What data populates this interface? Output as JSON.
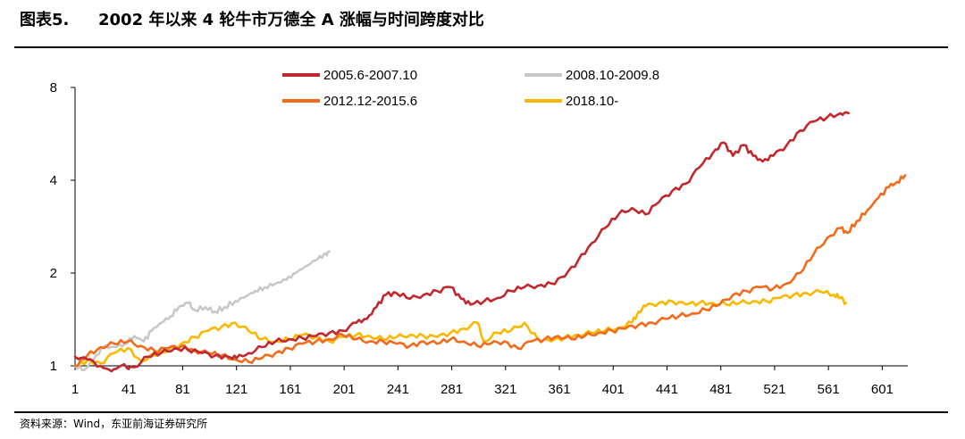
{
  "header": {
    "figure_label": "图表5.",
    "title": "2002 年以来 4 轮牛市万德全 A 涨幅与时间跨度对比"
  },
  "source": "资料来源：Wind，东亚前海证券研究所",
  "chart_data": {
    "type": "line",
    "title": "2002 年以来 4 轮牛市万德全 A 涨幅与时间跨度对比",
    "xlabel": "",
    "ylabel": "",
    "y_scale": "log",
    "ylim": [
      1,
      8
    ],
    "y_ticks": [
      1,
      2,
      4,
      8
    ],
    "xlim": [
      1,
      620
    ],
    "x_ticks": [
      1,
      41,
      81,
      121,
      161,
      201,
      241,
      281,
      321,
      361,
      401,
      441,
      481,
      521,
      561,
      601
    ],
    "grid": false,
    "legend_position": "top",
    "series": [
      {
        "name": "2005.6-2007.10",
        "color": "#c0282d",
        "points": [
          [
            1,
            1.07
          ],
          [
            10,
            1.05
          ],
          [
            20,
            1.0
          ],
          [
            28,
            0.96
          ],
          [
            35,
            1.0
          ],
          [
            45,
            0.99
          ],
          [
            55,
            1.07
          ],
          [
            65,
            1.1
          ],
          [
            75,
            1.14
          ],
          [
            85,
            1.13
          ],
          [
            95,
            1.1
          ],
          [
            105,
            1.08
          ],
          [
            115,
            1.07
          ],
          [
            121,
            1.06
          ],
          [
            130,
            1.1
          ],
          [
            140,
            1.15
          ],
          [
            150,
            1.2
          ],
          [
            160,
            1.22
          ],
          [
            170,
            1.23
          ],
          [
            180,
            1.25
          ],
          [
            190,
            1.28
          ],
          [
            200,
            1.3
          ],
          [
            210,
            1.38
          ],
          [
            218,
            1.42
          ],
          [
            225,
            1.55
          ],
          [
            232,
            1.7
          ],
          [
            240,
            1.72
          ],
          [
            250,
            1.65
          ],
          [
            260,
            1.7
          ],
          [
            270,
            1.75
          ],
          [
            280,
            1.8
          ],
          [
            288,
            1.65
          ],
          [
            295,
            1.58
          ],
          [
            305,
            1.62
          ],
          [
            315,
            1.66
          ],
          [
            325,
            1.75
          ],
          [
            335,
            1.8
          ],
          [
            345,
            1.82
          ],
          [
            355,
            1.85
          ],
          [
            365,
            1.95
          ],
          [
            375,
            2.2
          ],
          [
            385,
            2.5
          ],
          [
            395,
            2.8
          ],
          [
            405,
            3.1
          ],
          [
            415,
            3.25
          ],
          [
            425,
            3.1
          ],
          [
            435,
            3.4
          ],
          [
            445,
            3.7
          ],
          [
            455,
            3.9
          ],
          [
            465,
            4.4
          ],
          [
            475,
            4.9
          ],
          [
            483,
            5.3
          ],
          [
            490,
            4.8
          ],
          [
            498,
            5.2
          ],
          [
            505,
            4.8
          ],
          [
            512,
            4.6
          ],
          [
            520,
            4.8
          ],
          [
            530,
            5.2
          ],
          [
            540,
            5.8
          ],
          [
            550,
            6.2
          ],
          [
            560,
            6.4
          ],
          [
            570,
            6.6
          ],
          [
            576,
            6.6
          ]
        ]
      },
      {
        "name": "2008.10-2009.8",
        "color": "#c8c8c8",
        "points": [
          [
            1,
            1.0
          ],
          [
            8,
            0.97
          ],
          [
            15,
            1.05
          ],
          [
            22,
            1.15
          ],
          [
            30,
            1.15
          ],
          [
            38,
            1.18
          ],
          [
            45,
            1.25
          ],
          [
            52,
            1.2
          ],
          [
            58,
            1.3
          ],
          [
            65,
            1.38
          ],
          [
            72,
            1.45
          ],
          [
            78,
            1.55
          ],
          [
            85,
            1.6
          ],
          [
            90,
            1.52
          ],
          [
            98,
            1.55
          ],
          [
            105,
            1.5
          ],
          [
            112,
            1.55
          ],
          [
            120,
            1.62
          ],
          [
            128,
            1.68
          ],
          [
            135,
            1.75
          ],
          [
            142,
            1.8
          ],
          [
            150,
            1.85
          ],
          [
            158,
            1.9
          ],
          [
            165,
            2.0
          ],
          [
            172,
            2.1
          ],
          [
            180,
            2.2
          ],
          [
            186,
            2.3
          ],
          [
            190,
            2.35
          ]
        ]
      },
      {
        "name": "2012.12-2015.6",
        "color": "#f26a1b",
        "points": [
          [
            1,
            1.0
          ],
          [
            10,
            1.08
          ],
          [
            20,
            1.15
          ],
          [
            30,
            1.18
          ],
          [
            40,
            1.2
          ],
          [
            50,
            1.16
          ],
          [
            60,
            1.12
          ],
          [
            70,
            1.14
          ],
          [
            80,
            1.16
          ],
          [
            90,
            1.12
          ],
          [
            100,
            1.1
          ],
          [
            110,
            1.08
          ],
          [
            120,
            1.05
          ],
          [
            130,
            1.03
          ],
          [
            140,
            1.06
          ],
          [
            150,
            1.1
          ],
          [
            160,
            1.14
          ],
          [
            170,
            1.18
          ],
          [
            180,
            1.2
          ],
          [
            190,
            1.22
          ],
          [
            200,
            1.26
          ],
          [
            210,
            1.22
          ],
          [
            220,
            1.2
          ],
          [
            230,
            1.2
          ],
          [
            240,
            1.18
          ],
          [
            250,
            1.16
          ],
          [
            260,
            1.2
          ],
          [
            270,
            1.18
          ],
          [
            280,
            1.22
          ],
          [
            290,
            1.2
          ],
          [
            300,
            1.16
          ],
          [
            310,
            1.18
          ],
          [
            320,
            1.2
          ],
          [
            330,
            1.14
          ],
          [
            340,
            1.2
          ],
          [
            350,
            1.22
          ],
          [
            360,
            1.25
          ],
          [
            370,
            1.22
          ],
          [
            380,
            1.25
          ],
          [
            390,
            1.28
          ],
          [
            400,
            1.3
          ],
          [
            410,
            1.32
          ],
          [
            420,
            1.36
          ],
          [
            430,
            1.38
          ],
          [
            440,
            1.42
          ],
          [
            450,
            1.45
          ],
          [
            460,
            1.48
          ],
          [
            470,
            1.52
          ],
          [
            480,
            1.58
          ],
          [
            490,
            1.7
          ],
          [
            500,
            1.75
          ],
          [
            510,
            1.8
          ],
          [
            520,
            1.78
          ],
          [
            530,
            1.85
          ],
          [
            540,
            2.0
          ],
          [
            550,
            2.3
          ],
          [
            560,
            2.6
          ],
          [
            570,
            2.8
          ],
          [
            575,
            2.7
          ],
          [
            582,
            2.95
          ],
          [
            590,
            3.2
          ],
          [
            598,
            3.5
          ],
          [
            606,
            3.8
          ],
          [
            612,
            3.95
          ],
          [
            618,
            4.15
          ]
        ]
      },
      {
        "name": "2018.10-",
        "color": "#fbb800",
        "points": [
          [
            1,
            1.0
          ],
          [
            10,
            1.04
          ],
          [
            20,
            1.02
          ],
          [
            30,
            1.1
          ],
          [
            40,
            1.14
          ],
          [
            50,
            1.04
          ],
          [
            60,
            1.08
          ],
          [
            70,
            1.12
          ],
          [
            80,
            1.18
          ],
          [
            90,
            1.24
          ],
          [
            100,
            1.3
          ],
          [
            110,
            1.34
          ],
          [
            120,
            1.38
          ],
          [
            130,
            1.3
          ],
          [
            140,
            1.22
          ],
          [
            150,
            1.2
          ],
          [
            160,
            1.22
          ],
          [
            170,
            1.26
          ],
          [
            180,
            1.24
          ],
          [
            190,
            1.2
          ],
          [
            200,
            1.24
          ],
          [
            210,
            1.26
          ],
          [
            220,
            1.25
          ],
          [
            230,
            1.22
          ],
          [
            240,
            1.24
          ],
          [
            250,
            1.26
          ],
          [
            260,
            1.25
          ],
          [
            270,
            1.24
          ],
          [
            280,
            1.28
          ],
          [
            290,
            1.32
          ],
          [
            300,
            1.38
          ],
          [
            305,
            1.2
          ],
          [
            315,
            1.28
          ],
          [
            325,
            1.3
          ],
          [
            335,
            1.38
          ],
          [
            345,
            1.22
          ],
          [
            355,
            1.2
          ],
          [
            365,
            1.24
          ],
          [
            375,
            1.26
          ],
          [
            385,
            1.28
          ],
          [
            395,
            1.3
          ],
          [
            405,
            1.33
          ],
          [
            415,
            1.38
          ],
          [
            420,
            1.5
          ],
          [
            425,
            1.56
          ],
          [
            435,
            1.6
          ],
          [
            445,
            1.62
          ],
          [
            455,
            1.58
          ],
          [
            465,
            1.6
          ],
          [
            475,
            1.6
          ],
          [
            485,
            1.58
          ],
          [
            495,
            1.6
          ],
          [
            505,
            1.62
          ],
          [
            515,
            1.62
          ],
          [
            525,
            1.66
          ],
          [
            535,
            1.7
          ],
          [
            545,
            1.72
          ],
          [
            555,
            1.74
          ],
          [
            565,
            1.7
          ],
          [
            570,
            1.66
          ],
          [
            574,
            1.6
          ]
        ]
      }
    ]
  }
}
